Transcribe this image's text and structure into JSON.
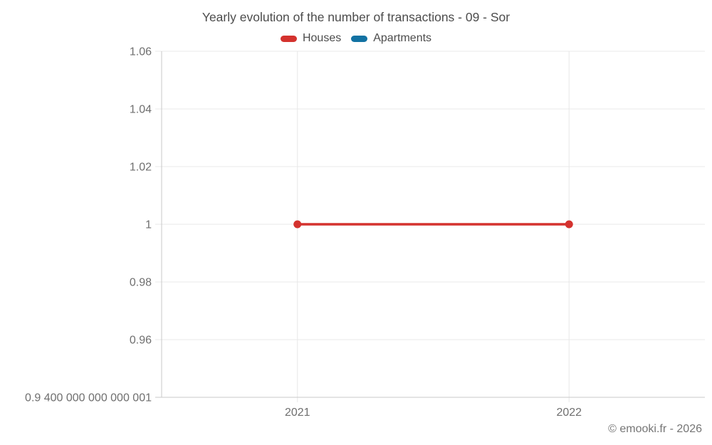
{
  "chart": {
    "title": "Yearly evolution of the number of transactions - 09 - Sor",
    "footer": "© emooki.fr - 2026"
  },
  "colors": {
    "houses": "#d4322e",
    "apartments": "#1272a3",
    "grid": "#e8e8e8",
    "axis": "#c9c9c9",
    "tick_text": "#6f6f6f",
    "title_text": "#4c4c4c"
  },
  "chart_data": {
    "type": "line",
    "title": "Yearly evolution of the number of transactions - 09 - Sor",
    "categories": [
      "2021",
      "2022"
    ],
    "series": [
      {
        "name": "Houses",
        "color": "#d4322e",
        "values": [
          1,
          1
        ]
      },
      {
        "name": "Apartments",
        "color": "#1272a3",
        "values": []
      }
    ],
    "xlabel": "",
    "ylabel": "",
    "ylim": [
      0.94,
      1.06
    ],
    "y_ticks": [
      {
        "value": 1.06,
        "label": "1.06"
      },
      {
        "value": 1.04,
        "label": "1.04"
      },
      {
        "value": 1.02,
        "label": "1.02"
      },
      {
        "value": 1.0,
        "label": "1"
      },
      {
        "value": 0.98,
        "label": "0.98"
      },
      {
        "value": 0.96,
        "label": "0.96"
      },
      {
        "value": 0.94,
        "label": "0.9 400 000 000 000 001"
      }
    ],
    "grid": true,
    "legend_position": "top",
    "marker": "circle"
  }
}
